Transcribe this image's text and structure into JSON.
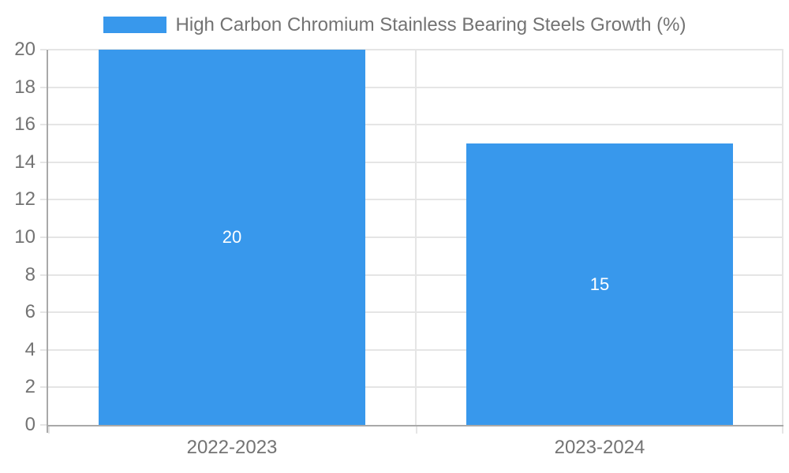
{
  "legend": {
    "label": "High Carbon Chromium Stainless Bearing Steels Growth (%)"
  },
  "colors": {
    "bar": "#3898ec",
    "grid": "#e5e5e5",
    "axis_line": "#a9a9a9",
    "axis_text": "#737373",
    "bar_label": "#ffffff",
    "background": "#ffffff"
  },
  "chart_data": {
    "type": "bar",
    "title": "High Carbon Chromium Stainless Bearing Steels Growth (%)",
    "categories": [
      "2022-2023",
      "2023-2024"
    ],
    "series": [
      {
        "name": "High Carbon Chromium Stainless Bearing Steels Growth (%)",
        "values": [
          20,
          15
        ]
      }
    ],
    "values": [
      20,
      15
    ],
    "bar_labels": [
      "20",
      "15"
    ],
    "xlabel": "",
    "ylabel": "",
    "ylim": [
      0,
      20
    ],
    "yticks": [
      0,
      2,
      4,
      6,
      8,
      10,
      12,
      14,
      16,
      18,
      20
    ],
    "grid": true,
    "legend_position": "top"
  }
}
